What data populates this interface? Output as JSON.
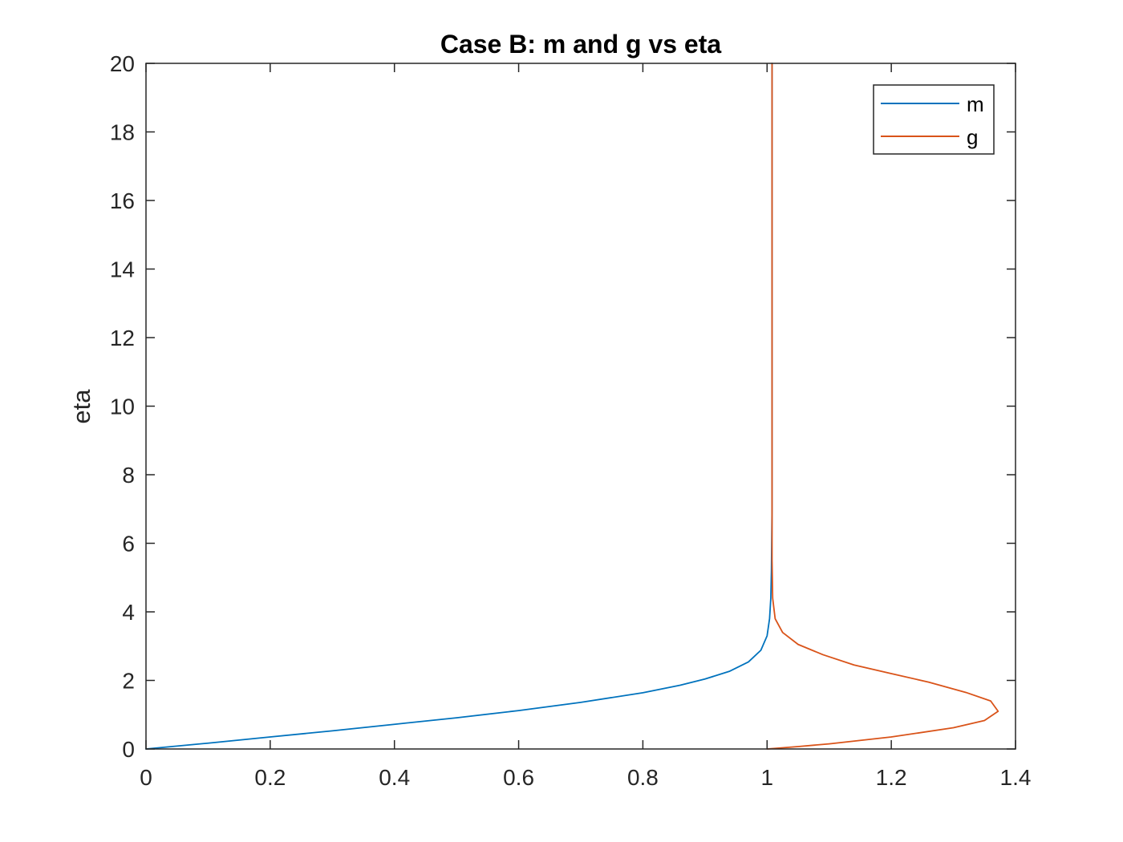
{
  "chart_data": {
    "type": "line",
    "title": "Case B: m and g vs eta",
    "xlabel": "",
    "ylabel": "eta",
    "xlim": [
      0,
      1.4
    ],
    "ylim": [
      0,
      20
    ],
    "xticks": [
      "0",
      "0.2",
      "0.4",
      "0.6",
      "0.8",
      "1",
      "1.2",
      "1.4"
    ],
    "yticks": [
      "0",
      "2",
      "4",
      "6",
      "8",
      "10",
      "12",
      "14",
      "16",
      "18",
      "20"
    ],
    "grid": false,
    "box": true,
    "legend_position": "top-right",
    "colors": {
      "m": "#0072BD",
      "g": "#D95319",
      "axes": "#262626"
    },
    "series": [
      {
        "name": "m",
        "color": "#0072BD",
        "points": [
          [
            0,
            0
          ],
          [
            0.1,
            0.17
          ],
          [
            0.2,
            0.35
          ],
          [
            0.3,
            0.53
          ],
          [
            0.4,
            0.72
          ],
          [
            0.5,
            0.91
          ],
          [
            0.6,
            1.12
          ],
          [
            0.7,
            1.36
          ],
          [
            0.8,
            1.64
          ],
          [
            0.86,
            1.86
          ],
          [
            0.9,
            2.04
          ],
          [
            0.94,
            2.27
          ],
          [
            0.97,
            2.54
          ],
          [
            0.99,
            2.88
          ],
          [
            1.0,
            3.3
          ],
          [
            1.004,
            3.8
          ],
          [
            1.006,
            4.4
          ],
          [
            1.007,
            5.2
          ],
          [
            1.008,
            7
          ],
          [
            1.008,
            20
          ]
        ]
      },
      {
        "name": "g",
        "color": "#D95319",
        "points": [
          [
            1.0,
            0
          ],
          [
            1.05,
            0.07
          ],
          [
            1.1,
            0.15
          ],
          [
            1.2,
            0.35
          ],
          [
            1.3,
            0.62
          ],
          [
            1.35,
            0.83
          ],
          [
            1.372,
            1.1
          ],
          [
            1.36,
            1.4
          ],
          [
            1.32,
            1.65
          ],
          [
            1.26,
            1.95
          ],
          [
            1.2,
            2.2
          ],
          [
            1.14,
            2.45
          ],
          [
            1.09,
            2.75
          ],
          [
            1.05,
            3.05
          ],
          [
            1.025,
            3.4
          ],
          [
            1.013,
            3.8
          ],
          [
            1.009,
            4.4
          ],
          [
            1.008,
            5.5
          ],
          [
            1.008,
            20
          ]
        ]
      }
    ]
  }
}
